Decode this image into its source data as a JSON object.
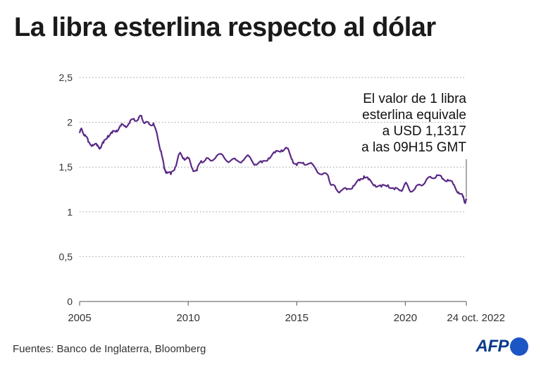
{
  "chart_data": {
    "type": "line",
    "title": "La libra esterlina respecto al dólar",
    "xlabel": "",
    "ylabel": "",
    "ylim": [
      0,
      2.5
    ],
    "xlim": [
      2005,
      2022.81
    ],
    "y_ticks": [
      "0",
      "0,5",
      "1",
      "1,5",
      "2",
      "2,5"
    ],
    "x_ticks": [
      "2005",
      "2010",
      "2015",
      "2020",
      "24 oct. 2022"
    ],
    "grid": "horizontal dotted",
    "line_color": "#5b2a86",
    "annotation": [
      "El valor de 1 libra",
      "esterlina equivale",
      "a USD 1,1317",
      "a las 09H15 GMT"
    ],
    "series": [
      {
        "x": [
          2005.0,
          2005.1,
          2005.25,
          2005.4,
          2005.6,
          2005.8,
          2005.95,
          2006.1,
          2006.3,
          2006.5,
          2006.7,
          2006.9,
          2007.1,
          2007.3,
          2007.5,
          2007.7,
          2007.85,
          2008.0,
          2008.2,
          2008.4,
          2008.6,
          2008.75,
          2008.9,
          2009.0,
          2009.2,
          2009.4,
          2009.6,
          2009.8,
          2010.0,
          2010.2,
          2010.4,
          2010.6,
          2010.8,
          2011.0,
          2011.3,
          2011.6,
          2011.9,
          2012.2,
          2012.5,
          2012.8,
          2013.1,
          2013.4,
          2013.7,
          2014.0,
          2014.3,
          2014.55,
          2014.8,
          2015.0,
          2015.3,
          2015.6,
          2015.9,
          2016.2,
          2016.45,
          2016.6,
          2016.8,
          2017.0,
          2017.3,
          2017.6,
          2017.9,
          2018.1,
          2018.3,
          2018.6,
          2018.9,
          2019.2,
          2019.5,
          2019.8,
          2020.0,
          2020.2,
          2020.45,
          2020.7,
          2020.95,
          2021.2,
          2021.45,
          2021.7,
          2021.95,
          2022.2,
          2022.45,
          2022.65,
          2022.75,
          2022.81
        ],
        "y": [
          1.88,
          1.92,
          1.86,
          1.78,
          1.75,
          1.74,
          1.72,
          1.77,
          1.85,
          1.88,
          1.91,
          1.96,
          1.96,
          1.99,
          2.04,
          2.03,
          2.07,
          1.99,
          1.98,
          1.99,
          1.82,
          1.68,
          1.48,
          1.45,
          1.42,
          1.5,
          1.65,
          1.6,
          1.6,
          1.48,
          1.46,
          1.57,
          1.58,
          1.58,
          1.62,
          1.63,
          1.56,
          1.58,
          1.57,
          1.62,
          1.53,
          1.55,
          1.6,
          1.66,
          1.69,
          1.71,
          1.58,
          1.52,
          1.55,
          1.54,
          1.47,
          1.42,
          1.4,
          1.3,
          1.26,
          1.23,
          1.25,
          1.29,
          1.35,
          1.4,
          1.36,
          1.3,
          1.28,
          1.3,
          1.25,
          1.24,
          1.32,
          1.24,
          1.26,
          1.3,
          1.35,
          1.38,
          1.41,
          1.37,
          1.36,
          1.31,
          1.22,
          1.17,
          1.11,
          1.13
        ]
      }
    ]
  },
  "source": "Fuentes: Banco de Inglaterra, Bloomberg",
  "logo": "AFP"
}
